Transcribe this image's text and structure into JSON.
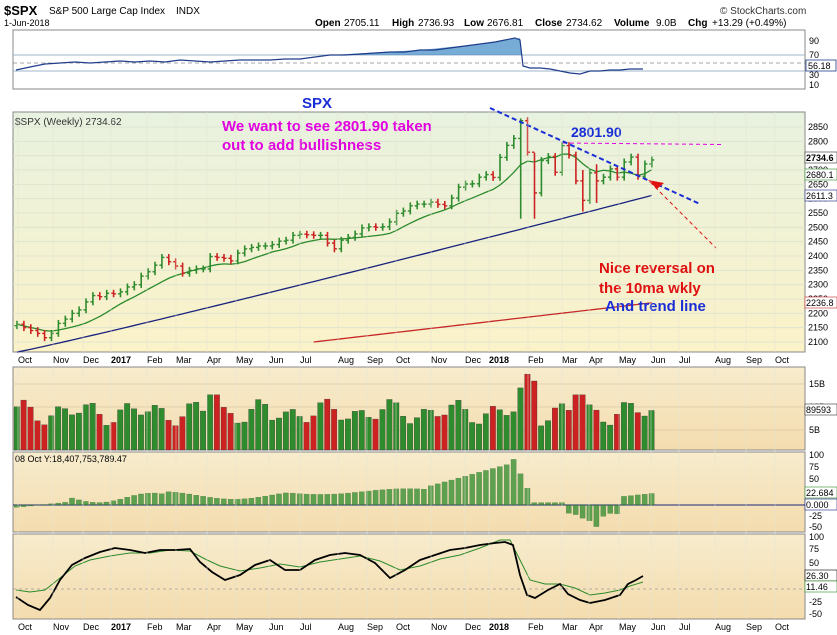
{
  "header": {
    "symbol": "$SPX",
    "name": "S&P 500 Large Cap Index",
    "exchange": "INDX",
    "date": "1-Jun-2018",
    "open_label": "Open",
    "open": "2705.11",
    "high_label": "High",
    "high": "2736.93",
    "low_label": "Low",
    "low": "2676.81",
    "close_label": "Close",
    "close": "2734.62",
    "volume_label": "Volume",
    "volume": "9.0B",
    "chg_label": "Chg",
    "chg": "+13.29 (+0.49%)",
    "watermark": "© StockCharts.com"
  },
  "rsi_panel": {
    "ticks": [
      "90",
      "70",
      "50",
      "30",
      "10"
    ],
    "value_tag": "56.18"
  },
  "price_panel": {
    "legend": "$SPX (Weekly) 2734.62",
    "annotation_spx": "SPX",
    "annotation_bull_line1": "We want to see 2801.90 taken",
    "annotation_bull_line2": "out to add bullishness",
    "annotation_level": "2801.90",
    "annotation_rev_line1": "Nice reversal on",
    "annotation_rev_line2": "the 10ma wkly",
    "annotation_trend": "And trend line",
    "tag_close": "2734.6",
    "tag_ma10": "2680.1",
    "tag_ma40": "2611.3",
    "tag_ma200": "2236.8"
  },
  "volume_panel": {
    "ticks": [
      "15B",
      "10B",
      "5B"
    ],
    "value_tag": "89593"
  },
  "macd_panel": {
    "legend": "08 Oct Y:18,407,753,789.47",
    "ticks": [
      "100",
      "75",
      "50",
      "25",
      "-25",
      "-50"
    ],
    "tag_a": "22.684",
    "tag_b": "0.000"
  },
  "stoch_panel": {
    "ticks": [
      "100",
      "75",
      "50",
      "25",
      "-25",
      "-50"
    ],
    "tag_a": "26.30",
    "tag_b": "11.46"
  },
  "colors": {
    "up": "#2e8b2e",
    "down": "#cc2222",
    "ma10": "#2b8a2b",
    "ma40": "#1a237e",
    "ma200": "#c62828",
    "magenta": "#e000e0",
    "blue_text": "#1a2ed6",
    "red_text": "#e01010"
  },
  "chart_data": {
    "type": "line",
    "x_axis": [
      "Oct",
      "Nov",
      "Dec",
      "2017",
      "Feb",
      "Mar",
      "Apr",
      "May",
      "Jun",
      "Jul",
      "Aug",
      "Sep",
      "Oct",
      "Nov",
      "Dec",
      "2018",
      "Feb",
      "Mar",
      "Apr",
      "May",
      "Jun",
      "Jul",
      "Aug",
      "Sep",
      "Oct"
    ],
    "y_ticks": [
      2850,
      2800,
      2750,
      2700,
      2650,
      2600,
      2550,
      2500,
      2450,
      2400,
      2350,
      2300,
      2250,
      2200,
      2150,
      2100
    ],
    "ylim": [
      2070,
      2890
    ],
    "weekly_close": [
      2162,
      2150,
      2140,
      2130,
      2115,
      2130,
      2165,
      2180,
      2200,
      2212,
      2240,
      2262,
      2258,
      2270,
      2268,
      2275,
      2292,
      2300,
      2330,
      2345,
      2368,
      2395,
      2380,
      2365,
      2340,
      2350,
      2355,
      2355,
      2398,
      2395,
      2392,
      2383,
      2410,
      2425,
      2430,
      2435,
      2435,
      2440,
      2452,
      2455,
      2472,
      2476,
      2474,
      2472,
      2472,
      2445,
      2425,
      2455,
      2465,
      2477,
      2498,
      2502,
      2500,
      2502,
      2519,
      2549,
      2557,
      2575,
      2581,
      2581,
      2588,
      2580,
      2575,
      2602,
      2640,
      2651,
      2652,
      2675,
      2684,
      2674,
      2744,
      2786,
      2810,
      2872,
      2762,
      2620,
      2733,
      2747,
      2692,
      2785,
      2752,
      2662,
      2594,
      2690,
      2662,
      2675,
      2704,
      2675,
      2728,
      2745,
      2678,
      2721,
      2735
    ],
    "ma10_level": 2680.1,
    "ma40_level": 2611.3,
    "ma200_level": 2236.8,
    "resistance": 2801.9
  }
}
